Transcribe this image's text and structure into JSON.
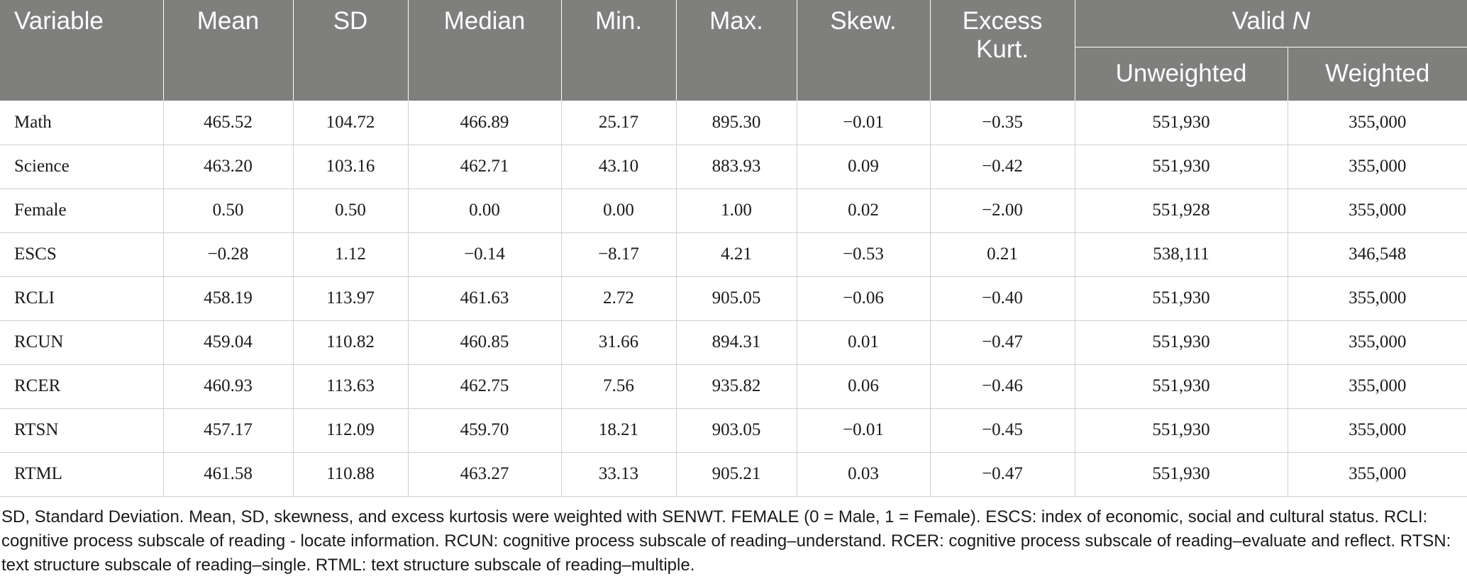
{
  "table": {
    "headers": {
      "variable": "Variable",
      "mean": "Mean",
      "sd": "SD",
      "median": "Median",
      "min": "Min.",
      "max": "Max.",
      "skew": "Skew.",
      "excess_kurt_line1": "Excess",
      "excess_kurt_line2": "Kurt.",
      "valid_n_text": "Valid ",
      "valid_n_italic": "N",
      "unweighted": "Unweighted",
      "weighted": "Weighted"
    },
    "rows": [
      {
        "variable": "Math",
        "mean": "465.52",
        "sd": "104.72",
        "median": "466.89",
        "min": "25.17",
        "max": "895.30",
        "skew": "−0.01",
        "kurt": "−0.35",
        "unweighted": "551,930",
        "weighted": "355,000"
      },
      {
        "variable": "Science",
        "mean": "463.20",
        "sd": "103.16",
        "median": "462.71",
        "min": "43.10",
        "max": "883.93",
        "skew": "0.09",
        "kurt": "−0.42",
        "unweighted": "551,930",
        "weighted": "355,000"
      },
      {
        "variable": "Female",
        "mean": "0.50",
        "sd": "0.50",
        "median": "0.00",
        "min": "0.00",
        "max": "1.00",
        "skew": "0.02",
        "kurt": "−2.00",
        "unweighted": "551,928",
        "weighted": "355,000"
      },
      {
        "variable": "ESCS",
        "mean": "−0.28",
        "sd": "1.12",
        "median": "−0.14",
        "min": "−8.17",
        "max": "4.21",
        "skew": "−0.53",
        "kurt": "0.21",
        "unweighted": "538,111",
        "weighted": "346,548"
      },
      {
        "variable": "RCLI",
        "mean": "458.19",
        "sd": "113.97",
        "median": "461.63",
        "min": "2.72",
        "max": "905.05",
        "skew": "−0.06",
        "kurt": "−0.40",
        "unweighted": "551,930",
        "weighted": "355,000"
      },
      {
        "variable": "RCUN",
        "mean": "459.04",
        "sd": "110.82",
        "median": "460.85",
        "min": "31.66",
        "max": "894.31",
        "skew": "0.01",
        "kurt": "−0.47",
        "unweighted": "551,930",
        "weighted": "355,000"
      },
      {
        "variable": "RCER",
        "mean": "460.93",
        "sd": "113.63",
        "median": "462.75",
        "min": "7.56",
        "max": "935.82",
        "skew": "0.06",
        "kurt": "−0.46",
        "unweighted": "551,930",
        "weighted": "355,000"
      },
      {
        "variable": "RTSN",
        "mean": "457.17",
        "sd": "112.09",
        "median": "459.70",
        "min": "18.21",
        "max": "903.05",
        "skew": "−0.01",
        "kurt": "−0.45",
        "unweighted": "551,930",
        "weighted": "355,000"
      },
      {
        "variable": "RTML",
        "mean": "461.58",
        "sd": "110.88",
        "median": "463.27",
        "min": "33.13",
        "max": "905.21",
        "skew": "0.03",
        "kurt": "−0.47",
        "unweighted": "551,930",
        "weighted": "355,000"
      }
    ]
  },
  "footnote": "SD, Standard Deviation. Mean, SD, skewness, and excess kurtosis were weighted with SENWT. FEMALE (0 = Male, 1 = Female). ESCS: index of economic, social and cultural status. RCLI: cognitive process subscale of reading - locate information. RCUN: cognitive process subscale of reading–understand. RCER: cognitive process subscale of reading–evaluate and reflect. RTSN: text structure subscale of reading–single. RTML: text structure subscale of reading–multiple.",
  "colors": {
    "header_bg": "#7f7f7e",
    "header_text": "#ffffff",
    "grid_line": "#cfcfcf"
  }
}
